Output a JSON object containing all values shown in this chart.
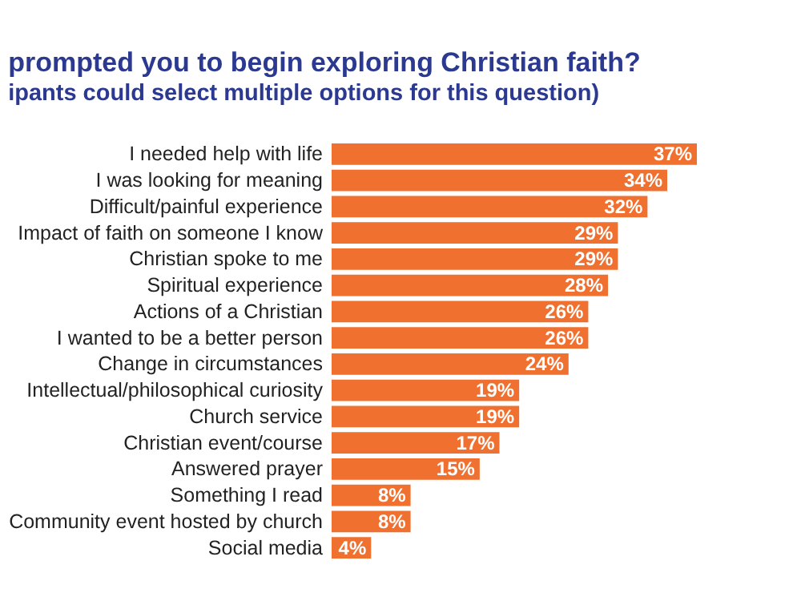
{
  "chart_data": {
    "type": "bar",
    "orientation": "horizontal",
    "title": "prompted you to begin exploring Christian faith?",
    "subtitle": "ipants could select multiple options for this question)",
    "categories": [
      "I needed help with life",
      "I was looking for meaning",
      "Difficult/painful experience",
      "Impact of faith on someone I know",
      "Christian spoke to me",
      "Spiritual experience",
      "Actions of a Christian",
      "I wanted to be a better person",
      "Change in circumstances",
      "Intellectual/philosophical curiosity",
      "Church service",
      "Christian event/course",
      "Answered prayer",
      "Something I read",
      "Community event hosted by church",
      "Social media"
    ],
    "values": [
      37,
      34,
      32,
      29,
      29,
      28,
      26,
      26,
      24,
      19,
      19,
      17,
      15,
      8,
      8,
      4
    ],
    "value_labels": [
      "37%",
      "34%",
      "32%",
      "29%",
      "29%",
      "28%",
      "26%",
      "26%",
      "24%",
      "19%",
      "19%",
      "17%",
      "15%",
      "8%",
      "8%",
      "4%"
    ],
    "color": "#f07030"
  }
}
